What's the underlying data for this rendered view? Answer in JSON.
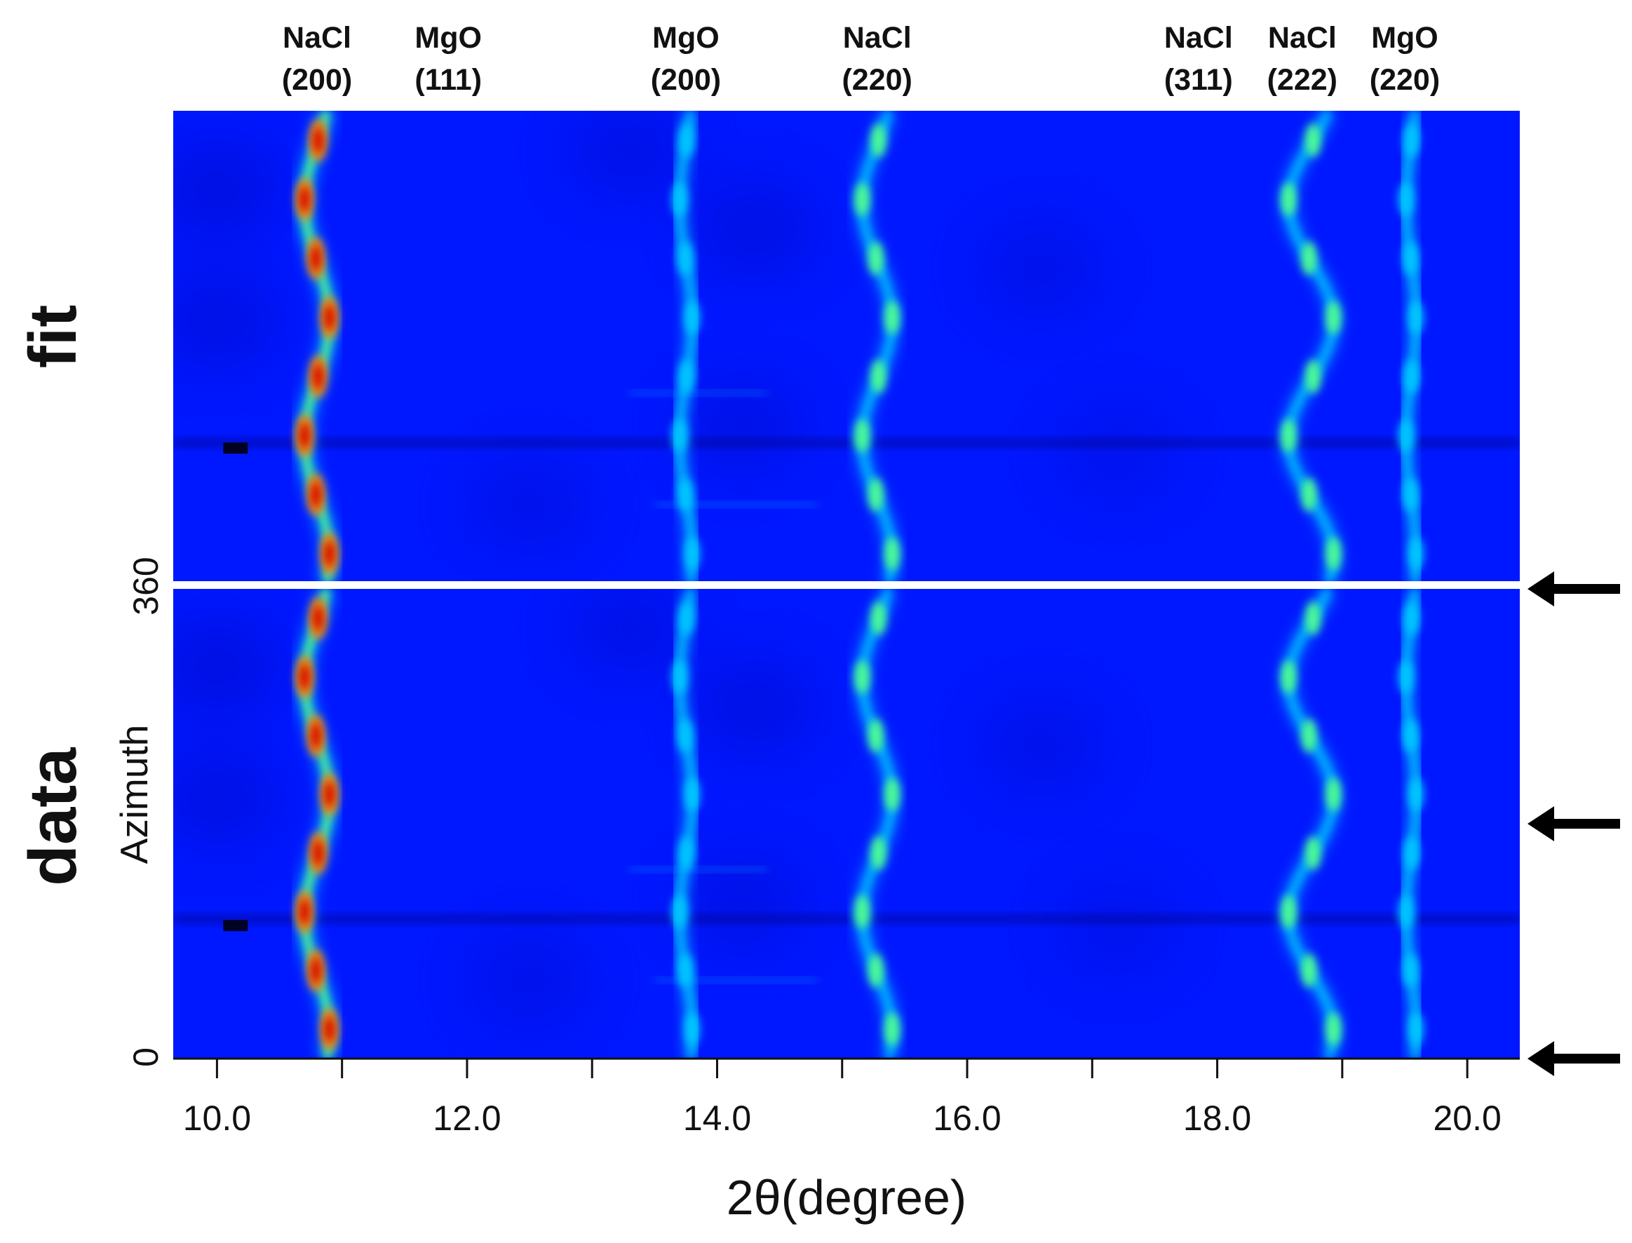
{
  "chart_data": {
    "type": "heatmap",
    "title": "",
    "xlabel": "2θ(degree)",
    "ylabel": "Azimuth",
    "xlim": [
      9.65,
      20.42
    ],
    "ylim": [
      0,
      360
    ],
    "x_ticks": [
      10.0,
      11.0,
      12.0,
      13.0,
      14.0,
      15.0,
      16.0,
      17.0,
      18.0,
      19.0,
      20.0
    ],
    "x_tick_labels": [
      "10.0",
      "12.0",
      "14.0",
      "16.0",
      "18.0",
      "20.0"
    ],
    "y_tick_labels": [
      "0",
      "360"
    ],
    "panels": [
      {
        "name": "fit",
        "label": "fit"
      },
      {
        "name": "data",
        "label": "data"
      }
    ],
    "colormap": [
      "#0000a8",
      "#0018ff",
      "#00c8ff",
      "#50ff90",
      "#ffff00",
      "#ff8000",
      "#d00000"
    ],
    "background_color": "#0018ff",
    "peaks": [
      {
        "phase": "NaCl",
        "hkl": "(200)",
        "two_theta": 10.8,
        "amplitude": 0.1,
        "intensity": 1.0
      },
      {
        "phase": "MgO",
        "hkl": "(111)",
        "two_theta": 11.85,
        "amplitude": 0.0,
        "intensity": 0.12
      },
      {
        "phase": "MgO",
        "hkl": "(200)",
        "two_theta": 13.75,
        "amplitude": 0.05,
        "intensity": 0.45
      },
      {
        "phase": "NaCl",
        "hkl": "(220)",
        "two_theta": 15.28,
        "amplitude": 0.12,
        "intensity": 0.6
      },
      {
        "phase": "NaCl",
        "hkl": "(311)",
        "two_theta": 17.85,
        "amplitude": 0.0,
        "intensity": 0.15
      },
      {
        "phase": "NaCl",
        "hkl": "(222)",
        "two_theta": 18.75,
        "amplitude": 0.18,
        "intensity": 0.5
      },
      {
        "phase": "MgO",
        "hkl": "(220)",
        "two_theta": 19.55,
        "amplitude": 0.04,
        "intensity": 0.45
      }
    ],
    "arrows_azimuth": [
      360,
      180,
      0
    ],
    "annotations": []
  }
}
